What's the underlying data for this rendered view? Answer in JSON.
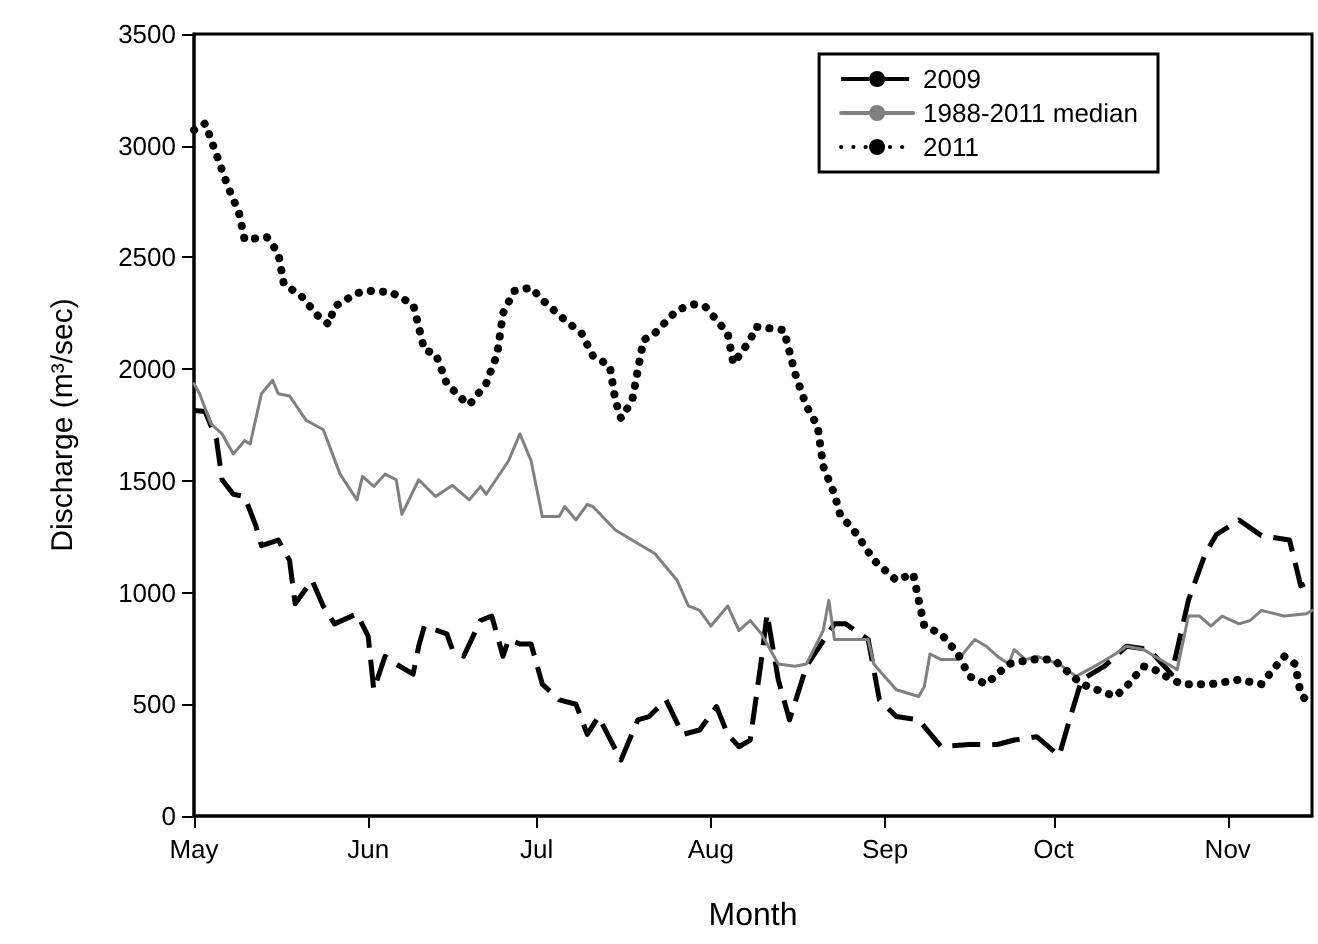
{
  "chart_data": {
    "type": "line",
    "xlabel": "Month",
    "ylabel": "Discharge (m³/sec)",
    "xlim": [
      "--05-01",
      "--11-16"
    ],
    "xticks": [
      {
        "value": "--05-01",
        "label": "May"
      },
      {
        "value": "--06-01",
        "label": "Jun"
      },
      {
        "value": "--07-01",
        "label": "Jul"
      },
      {
        "value": "--08-01",
        "label": "Aug"
      },
      {
        "value": "--09-01",
        "label": "Sep"
      },
      {
        "value": "--10-01",
        "label": "Oct"
      },
      {
        "value": "--11-01",
        "label": "Nov"
      }
    ],
    "ylim": [
      0,
      3500
    ],
    "yticks": [
      0,
      500,
      1000,
      1500,
      2000,
      2500,
      3000,
      3500
    ],
    "legend": "top right",
    "series": [
      {
        "name": "2009",
        "color": "#000000",
        "line_style": "dashed",
        "x": [
          "--05-01",
          "--05-03",
          "--05-05",
          "--05-06",
          "--05-08",
          "--05-10",
          "--05-12",
          "--05-13",
          "--05-16",
          "--05-18",
          "--05-19",
          "--05-22",
          "--05-24",
          "--05-26",
          "--05-30",
          "--06-01",
          "--06-02",
          "--06-04",
          "--06-06",
          "--06-09",
          "--06-10",
          "--06-11",
          "--06-15",
          "--06-16",
          "--06-18",
          "--06-21",
          "--06-23",
          "--06-25",
          "--06-26",
          "--06-28",
          "--06-30",
          "--07-02",
          "--07-05",
          "--07-08",
          "--07-10",
          "--07-12",
          "--07-16",
          "--07-19",
          "--07-21",
          "--07-24",
          "--07-27",
          "--07-30",
          "--08-02",
          "--08-04",
          "--08-06",
          "--08-08",
          "--08-09",
          "--08-10",
          "--08-11",
          "--08-13",
          "--08-15",
          "--08-18",
          "--08-23",
          "--08-25",
          "--08-29",
          "--08-31",
          "--09-03",
          "--09-07",
          "--09-11",
          "--09-16",
          "--09-21",
          "--09-24",
          "--09-28",
          "--10-02",
          "--10-04",
          "--10-06",
          "--10-10",
          "--10-14",
          "--10-18",
          "--10-22",
          "--10-25",
          "--10-28",
          "--10-30",
          "--11-03",
          "--11-07",
          "--11-12",
          "--11-14",
          "--11-16"
        ],
        "values": [
          1815,
          1810,
          1685,
          1505,
          1440,
          1430,
          1300,
          1210,
          1235,
          1145,
          950,
          1055,
          940,
          860,
          905,
          805,
          565,
          715,
          680,
          635,
          760,
          850,
          815,
          745,
          715,
          875,
          895,
          715,
          790,
          770,
          770,
          590,
          520,
          500,
          365,
          445,
          250,
          430,
          445,
          520,
          365,
          385,
          490,
          365,
          310,
          340,
          520,
          700,
          905,
          610,
          430,
          670,
          860,
          860,
          790,
          520,
          445,
          430,
          310,
          320,
          320,
          340,
          355,
          270,
          445,
          610,
          670,
          760,
          745,
          635,
          965,
          1175,
          1260,
          1325,
          1255,
          1235,
          1030,
          1055
        ]
      },
      {
        "name": "1988-2011 median",
        "color": "#808080",
        "line_style": "solid",
        "x": [
          "--05-01",
          "--05-02",
          "--05-04",
          "--05-06",
          "--05-08",
          "--05-10",
          "--05-11",
          "--05-13",
          "--05-15",
          "--05-16",
          "--05-18",
          "--05-21",
          "--05-24",
          "--05-27",
          "--05-30",
          "--05-31",
          "--06-02",
          "--06-04",
          "--06-06",
          "--06-07",
          "--06-10",
          "--06-13",
          "--06-16",
          "--06-19",
          "--06-21",
          "--06-22",
          "--06-26",
          "--06-28",
          "--06-30",
          "--07-02",
          "--07-05",
          "--07-06",
          "--07-08",
          "--07-10",
          "--07-11",
          "--07-15",
          "--07-19",
          "--07-22",
          "--07-26",
          "--07-28",
          "--07-30",
          "--08-01",
          "--08-04",
          "--08-06",
          "--08-08",
          "--08-10",
          "--08-13",
          "--08-16",
          "--08-18",
          "--08-21",
          "--08-22",
          "--08-23",
          "--08-29",
          "--08-30",
          "--09-03",
          "--09-07",
          "--09-08",
          "--09-09",
          "--09-11",
          "--09-14",
          "--09-17",
          "--09-19",
          "--09-21",
          "--09-23",
          "--09-24",
          "--09-26",
          "--09-28",
          "--10-02",
          "--10-05",
          "--10-09",
          "--10-12",
          "--10-14",
          "--10-17",
          "--10-19",
          "--10-23",
          "--10-25",
          "--10-27",
          "--10-29",
          "--10-31",
          "--11-03",
          "--11-05",
          "--11-07",
          "--11-11",
          "--11-15",
          "--11-16"
        ],
        "values": [
          1935,
          1890,
          1755,
          1710,
          1620,
          1680,
          1665,
          1890,
          1950,
          1890,
          1880,
          1770,
          1730,
          1530,
          1415,
          1520,
          1475,
          1530,
          1505,
          1350,
          1505,
          1430,
          1480,
          1415,
          1475,
          1440,
          1590,
          1710,
          1590,
          1340,
          1340,
          1385,
          1325,
          1395,
          1385,
          1280,
          1220,
          1175,
          1055,
          940,
          920,
          850,
          940,
          830,
          875,
          815,
          680,
          670,
          680,
          830,
          965,
          790,
          790,
          680,
          565,
          535,
          580,
          725,
          700,
          700,
          790,
          760,
          715,
          680,
          745,
          700,
          715,
          680,
          625,
          680,
          725,
          760,
          745,
          715,
          655,
          895,
          895,
          850,
          895,
          860,
          875,
          920,
          895,
          905,
          920
        ]
      },
      {
        "name": "2011",
        "color": "#000000",
        "line_style": "dotted",
        "x": [
          "--05-01",
          "--05-03",
          "--05-05",
          "--05-07",
          "--05-09",
          "--05-10",
          "--05-14",
          "--05-16",
          "--05-17",
          "--05-20",
          "--05-23",
          "--05-25",
          "--05-26",
          "--05-30",
          "--06-01",
          "--06-05",
          "--06-09",
          "--06-10",
          "--06-11",
          "--06-13",
          "--06-15",
          "--06-18",
          "--06-19",
          "--06-22",
          "--06-24",
          "--06-25",
          "--06-27",
          "--06-30",
          "--07-02",
          "--07-06",
          "--07-09",
          "--07-11",
          "--07-14",
          "--07-15",
          "--07-16",
          "--07-18",
          "--07-20",
          "--07-22",
          "--07-26",
          "--07-29",
          "--07-31",
          "--08-04",
          "--08-05",
          "--08-08",
          "--08-09",
          "--08-14",
          "--08-16",
          "--08-18",
          "--08-20",
          "--08-21",
          "--08-23",
          "--08-24",
          "--08-27",
          "--08-30",
          "--09-03",
          "--09-06",
          "--09-07",
          "--09-08",
          "--09-11",
          "--09-14",
          "--09-16",
          "--09-19",
          "--09-23",
          "--09-27",
          "--10-01",
          "--10-04",
          "--10-06",
          "--10-12",
          "--10-14",
          "--10-17",
          "--10-19",
          "--10-22",
          "--10-24",
          "--10-29",
          "--11-03",
          "--11-07",
          "--11-11",
          "--11-13",
          "--11-14",
          "--11-16"
        ],
        "values": [
          3070,
          3100,
          2960,
          2820,
          2700,
          2580,
          2590,
          2520,
          2380,
          2330,
          2240,
          2200,
          2280,
          2340,
          2350,
          2345,
          2290,
          2190,
          2085,
          2070,
          1935,
          1860,
          1840,
          1935,
          2070,
          2250,
          2350,
          2365,
          2310,
          2220,
          2160,
          2060,
          2015,
          1860,
          1780,
          1860,
          2130,
          2160,
          2265,
          2290,
          2280,
          2160,
          2025,
          2130,
          2190,
          2175,
          1980,
          1835,
          1745,
          1565,
          1440,
          1350,
          1260,
          1145,
          1055,
          1085,
          965,
          850,
          815,
          725,
          625,
          590,
          680,
          700,
          700,
          635,
          590,
          535,
          580,
          670,
          655,
          610,
          590,
          590,
          610,
          590,
          715,
          680,
          545,
          490
        ]
      }
    ]
  }
}
